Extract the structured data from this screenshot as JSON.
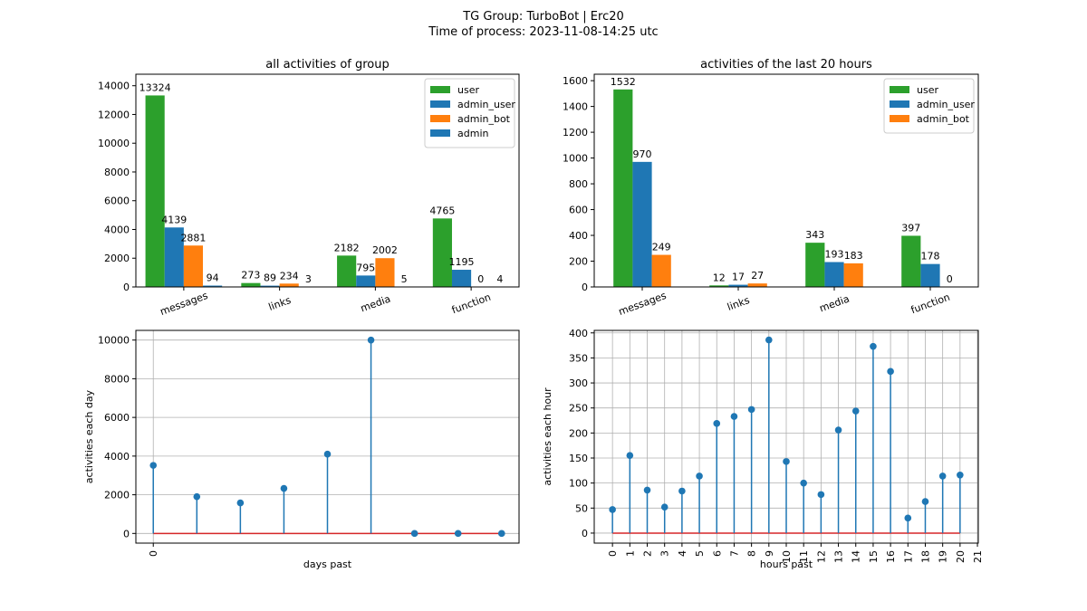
{
  "figure": {
    "title_line1": "TG Group: TurboBot | Erc20",
    "title_line2": "Time of process: 2023-11-08-14:25 utc"
  },
  "colors": {
    "user": "#2ca02c",
    "admin_user": "#1f77b4",
    "admin_bot": "#ff7f0e",
    "admin": "#1f77b4",
    "stem": "#1f77b4",
    "baseline": "#d62728",
    "grid": "#b0b0b0"
  },
  "chart_data": [
    {
      "type": "bar",
      "title": "all activities of group",
      "categories": [
        "messages",
        "links",
        "media",
        "function"
      ],
      "series": [
        {
          "name": "user",
          "values": [
            13324,
            273,
            2182,
            4765
          ]
        },
        {
          "name": "admin_user",
          "values": [
            4139,
            89,
            795,
            1195
          ]
        },
        {
          "name": "admin_bot",
          "values": [
            2881,
            234,
            2002,
            0
          ]
        },
        {
          "name": "admin",
          "values": [
            94,
            3,
            5,
            4
          ]
        }
      ],
      "ylim": [
        0,
        14800
      ],
      "yticks": [
        0,
        2000,
        4000,
        6000,
        8000,
        10000,
        12000,
        14000
      ],
      "legend": "top-right",
      "grid": false
    },
    {
      "type": "bar",
      "title": "activities of the last 20 hours",
      "categories": [
        "messages",
        "links",
        "media",
        "function"
      ],
      "series": [
        {
          "name": "user",
          "values": [
            1532,
            12,
            343,
            397
          ]
        },
        {
          "name": "admin_user",
          "values": [
            970,
            17,
            193,
            178
          ]
        },
        {
          "name": "admin_bot",
          "values": [
            249,
            27,
            183,
            0
          ]
        }
      ],
      "ylim": [
        0,
        1650
      ],
      "yticks": [
        0,
        200,
        400,
        600,
        800,
        1000,
        1200,
        1400,
        1600
      ],
      "legend": "top-right",
      "grid": false
    },
    {
      "type": "stem",
      "xlabel": "days past",
      "ylabel": "activities each day",
      "x": [
        0,
        1,
        2,
        3,
        4,
        5,
        6,
        7,
        8
      ],
      "values": [
        3520,
        1900,
        1580,
        2330,
        4100,
        10000,
        0,
        0,
        0
      ],
      "xticks": [
        0
      ],
      "yticks": [
        0,
        2000,
        4000,
        6000,
        8000,
        10000
      ],
      "xlim": [
        -0.4,
        8.4
      ],
      "ylim": [
        -500,
        10500
      ],
      "grid": true
    },
    {
      "type": "stem",
      "xlabel": "hours past",
      "ylabel": "activities each hour",
      "x": [
        0,
        1,
        2,
        3,
        4,
        5,
        6,
        7,
        8,
        9,
        10,
        11,
        12,
        13,
        14,
        15,
        16,
        17,
        18,
        19,
        20
      ],
      "values": [
        47,
        155,
        86,
        52,
        84,
        114,
        219,
        233,
        247,
        386,
        143,
        100,
        77,
        206,
        244,
        373,
        323,
        30,
        63,
        114,
        116
      ],
      "xticks": [
        0,
        1,
        2,
        3,
        4,
        5,
        6,
        7,
        8,
        9,
        10,
        11,
        12,
        13,
        14,
        15,
        16,
        17,
        18,
        19,
        20,
        21
      ],
      "yticks": [
        0,
        50,
        100,
        150,
        200,
        250,
        300,
        350,
        400
      ],
      "xlim": [
        -1.05,
        21.05
      ],
      "ylim": [
        -20,
        405
      ],
      "grid": true
    }
  ]
}
